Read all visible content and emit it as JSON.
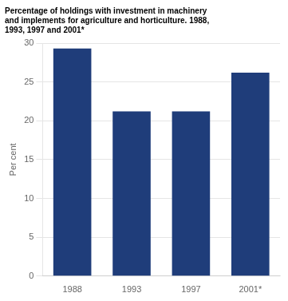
{
  "chart_data": {
    "type": "bar",
    "title": "Percentage of holdings with investment in machinery\nand implements for agriculture and horticulture. 1988,\n1993, 1997 and 2001*",
    "ylabel": "Per cent",
    "categories": [
      "1988",
      "1993",
      "1997",
      "2001*"
    ],
    "values": [
      29.3,
      21.2,
      21.2,
      26.2
    ],
    "color": "#1f3d7a",
    "ylim": [
      0,
      30
    ],
    "yticks": [
      0,
      5,
      10,
      15,
      20,
      25,
      30
    ],
    "grid": true
  }
}
